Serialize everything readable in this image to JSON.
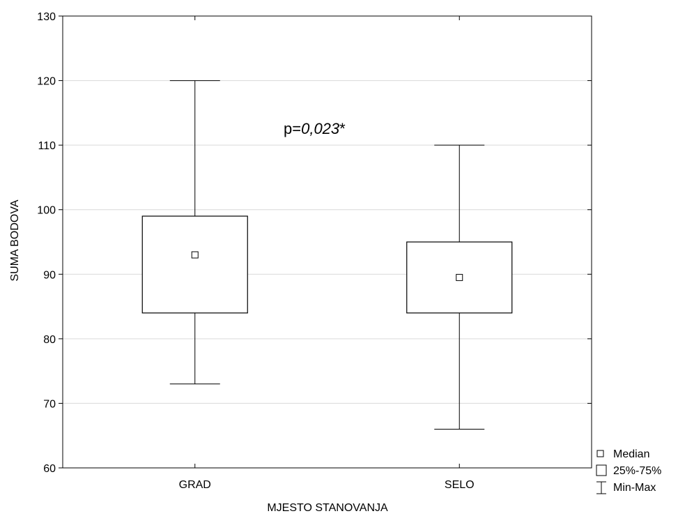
{
  "chart_data": {
    "type": "boxplot",
    "xlabel": "MJESTO STANOVANJA",
    "ylabel": "SUMA BODOVA",
    "ylim": [
      60,
      130
    ],
    "yticks": [
      60,
      70,
      80,
      90,
      100,
      110,
      120,
      130
    ],
    "grid": true,
    "categories": [
      "GRAD",
      "SELO"
    ],
    "boxes": [
      {
        "category": "GRAD",
        "min": 73,
        "q1": 84,
        "median": 93,
        "q3": 99,
        "max": 120
      },
      {
        "category": "SELO",
        "min": 66,
        "q1": 84,
        "median": 89.5,
        "q3": 95,
        "max": 110
      }
    ],
    "annotation": {
      "prefix": "p=",
      "value": "0,023",
      "suffix": "*"
    },
    "legend": {
      "position": "bottom-right",
      "items": [
        {
          "symbol": "median",
          "label": "Median"
        },
        {
          "symbol": "box",
          "label": "25%-75%"
        },
        {
          "symbol": "whisker",
          "label": "Min-Max"
        }
      ]
    }
  }
}
